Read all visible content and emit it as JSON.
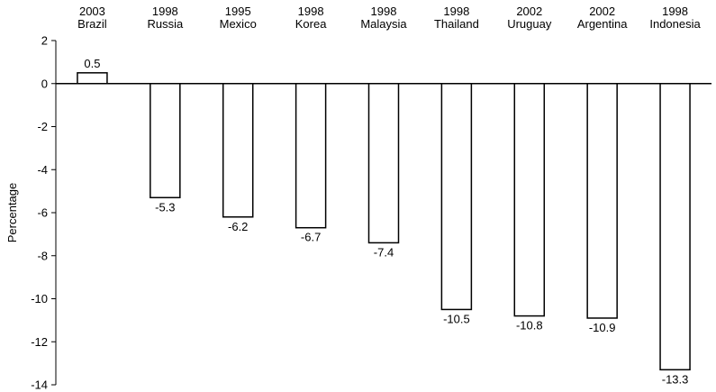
{
  "chart_data": {
    "type": "bar",
    "categories": [
      {
        "year": "2003",
        "country": "Brazil"
      },
      {
        "year": "1998",
        "country": "Russia"
      },
      {
        "year": "1995",
        "country": "Mexico"
      },
      {
        "year": "1998",
        "country": "Korea"
      },
      {
        "year": "1998",
        "country": "Malaysia"
      },
      {
        "year": "1998",
        "country": "Thailand"
      },
      {
        "year": "2002",
        "country": "Uruguay"
      },
      {
        "year": "2002",
        "country": "Argentina"
      },
      {
        "year": "1998",
        "country": "Indonesia"
      }
    ],
    "values": [
      0.5,
      -5.3,
      -6.2,
      -6.7,
      -7.4,
      -10.5,
      -10.8,
      -10.9,
      -13.3
    ],
    "data_labels": [
      "0.5",
      "-5.3",
      "-6.2",
      "-6.7",
      "-7.4",
      "-10.5",
      "-10.8",
      "-10.9",
      "-13.3"
    ],
    "title": "",
    "xlabel": "",
    "ylabel": "Percentage",
    "ylim": [
      -14,
      2
    ],
    "yticks": [
      2,
      0,
      -2,
      -4,
      -6,
      -8,
      -10,
      -12,
      -14
    ],
    "category_axis_position": "top",
    "grid": false,
    "legend": "none",
    "bar_fill": "#ffffff",
    "bar_stroke": "#000000"
  }
}
